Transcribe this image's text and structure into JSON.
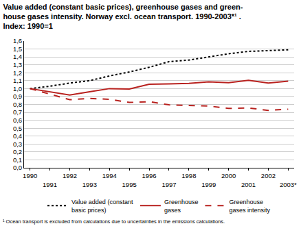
{
  "chart_data": {
    "type": "line",
    "title": [
      "Value added (constant basic prices), greenhouse gases and green-",
      "house gases intensity. Norway excl. ocean transport. 1990-2003*¹ .",
      "Index: 1990=1"
    ],
    "annotations": [
      "¹ Ocean transport is excluded from calculations due to uncertainties in the emissions calculations."
    ],
    "categories": [
      "1990",
      "1991",
      "1992",
      "1993",
      "1994",
      "1995",
      "1996",
      "1997",
      "1998",
      "1999",
      "2000",
      "2001",
      "2002",
      "2003*"
    ],
    "series": [
      {
        "name": "Value added (constant basic prices)",
        "color": "#000000",
        "line_style": "dotted",
        "values": [
          1.0,
          1.03,
          1.07,
          1.1,
          1.16,
          1.21,
          1.27,
          1.34,
          1.36,
          1.4,
          1.44,
          1.47,
          1.48,
          1.49
        ]
      },
      {
        "name": "Greenhouse gases",
        "color": "#b8211e",
        "line_style": "solid",
        "values": [
          1.0,
          0.96,
          0.92,
          0.96,
          1.0,
          0.995,
          1.055,
          1.06,
          1.065,
          1.085,
          1.075,
          1.105,
          1.07,
          1.095
        ]
      },
      {
        "name": "Greenhouse gases intensity",
        "color": "#b8211e",
        "line_style": "dashed",
        "values": [
          1.0,
          0.93,
          0.86,
          0.875,
          0.865,
          0.825,
          0.835,
          0.795,
          0.785,
          0.78,
          0.75,
          0.755,
          0.725,
          0.74
        ]
      }
    ],
    "ylim": [
      0,
      1.6
    ],
    "yticks": [
      {
        "value": 0,
        "label": "0,0"
      },
      {
        "value": 0.1,
        "label": "0,1"
      },
      {
        "value": 0.2,
        "label": "0,2"
      },
      {
        "value": 0.3,
        "label": "0,3"
      },
      {
        "value": 0.4,
        "label": "0,4"
      },
      {
        "value": 0.5,
        "label": "0,5"
      },
      {
        "value": 0.6,
        "label": "0,6"
      },
      {
        "value": 0.7,
        "label": "0,7"
      },
      {
        "value": 0.8,
        "label": "0,8"
      },
      {
        "value": 0.9,
        "label": "0,9"
      },
      {
        "value": 1,
        "label": "1,0"
      },
      {
        "value": 1.1,
        "label": "1,1"
      },
      {
        "value": 1.2,
        "label": "1,2"
      },
      {
        "value": 1.3,
        "label": "1,3"
      },
      {
        "value": 1.4,
        "label": "1,4"
      },
      {
        "value": 1.5,
        "label": "1,5"
      },
      {
        "value": 1.6,
        "label": "1,6"
      }
    ],
    "grid": true,
    "legend": "bottom"
  }
}
